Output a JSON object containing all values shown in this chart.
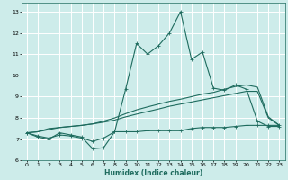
{
  "xlabel": "Humidex (Indice chaleur)",
  "ylabel": "",
  "xlim": [
    -0.5,
    23.5
  ],
  "ylim": [
    6.0,
    13.4
  ],
  "yticks": [
    6,
    7,
    8,
    9,
    10,
    11,
    12,
    13
  ],
  "xticks": [
    0,
    1,
    2,
    3,
    4,
    5,
    6,
    7,
    8,
    9,
    10,
    11,
    12,
    13,
    14,
    15,
    16,
    17,
    18,
    19,
    20,
    21,
    22,
    23
  ],
  "bg_color": "#cdecea",
  "grid_color": "#ffffff",
  "line_color": "#1e6b5e",
  "line1_y": [
    7.3,
    7.1,
    7.0,
    7.3,
    7.2,
    7.1,
    6.55,
    6.6,
    7.35,
    9.35,
    11.5,
    11.0,
    11.4,
    12.0,
    13.0,
    10.75,
    11.1,
    9.4,
    9.3,
    9.55,
    9.35,
    7.85,
    7.6,
    7.6
  ],
  "line2_y": [
    7.3,
    7.15,
    7.05,
    7.2,
    7.15,
    7.05,
    6.9,
    7.05,
    7.35,
    7.35,
    7.35,
    7.4,
    7.4,
    7.4,
    7.4,
    7.5,
    7.55,
    7.55,
    7.55,
    7.6,
    7.65,
    7.65,
    7.65,
    7.65
  ],
  "line3_y": [
    7.3,
    7.35,
    7.5,
    7.55,
    7.6,
    7.65,
    7.72,
    7.8,
    7.9,
    8.05,
    8.18,
    8.3,
    8.42,
    8.55,
    8.65,
    8.75,
    8.85,
    8.95,
    9.05,
    9.15,
    9.25,
    9.25,
    8.0,
    7.65
  ],
  "line4_y": [
    7.3,
    7.35,
    7.45,
    7.55,
    7.6,
    7.65,
    7.72,
    7.85,
    8.0,
    8.2,
    8.38,
    8.52,
    8.65,
    8.78,
    8.88,
    9.0,
    9.12,
    9.2,
    9.35,
    9.48,
    9.55,
    9.45,
    8.05,
    7.65
  ]
}
